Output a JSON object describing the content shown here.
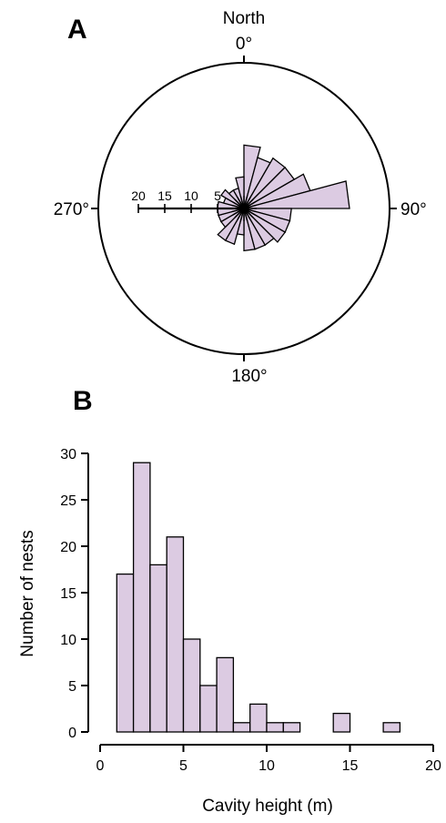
{
  "panels": {
    "a_label": "A",
    "b_label": "B"
  },
  "colors": {
    "fill": "#dccbe2",
    "stroke": "#000000"
  },
  "chart_data": [
    {
      "type": "rose",
      "direction_labels": {
        "north": "North",
        "n": "0°",
        "e": "90°",
        "s": "180°",
        "w": "270°"
      },
      "radial_ticks": [
        20,
        15,
        10,
        5
      ],
      "radial_max": 25,
      "bin_width_deg": 15,
      "bins": [
        {
          "start": 0,
          "value": 12
        },
        {
          "start": 15,
          "value": 10
        },
        {
          "start": 30,
          "value": 11
        },
        {
          "start": 45,
          "value": 11
        },
        {
          "start": 60,
          "value": 13
        },
        {
          "start": 75,
          "value": 20
        },
        {
          "start": 90,
          "value": 9
        },
        {
          "start": 105,
          "value": 9
        },
        {
          "start": 120,
          "value": 9
        },
        {
          "start": 135,
          "value": 8
        },
        {
          "start": 150,
          "value": 8
        },
        {
          "start": 165,
          "value": 8
        },
        {
          "start": 180,
          "value": 5
        },
        {
          "start": 195,
          "value": 7
        },
        {
          "start": 210,
          "value": 7
        },
        {
          "start": 225,
          "value": 5
        },
        {
          "start": 240,
          "value": 5
        },
        {
          "start": 255,
          "value": 5
        },
        {
          "start": 270,
          "value": 5
        },
        {
          "start": 285,
          "value": 4
        },
        {
          "start": 300,
          "value": 5
        },
        {
          "start": 315,
          "value": 4
        },
        {
          "start": 330,
          "value": 4
        },
        {
          "start": 345,
          "value": 6
        }
      ]
    },
    {
      "type": "bar",
      "xlabel": "Cavity height (m)",
      "ylabel": "Number of nests",
      "xlim": [
        0,
        20
      ],
      "ylim": [
        0,
        30
      ],
      "xticks": [
        0,
        5,
        10,
        15,
        20
      ],
      "yticks": [
        0,
        5,
        10,
        15,
        20,
        25,
        30
      ],
      "bin_width": 1,
      "bins": [
        {
          "x0": 1,
          "count": 17
        },
        {
          "x0": 2,
          "count": 29
        },
        {
          "x0": 3,
          "count": 18
        },
        {
          "x0": 4,
          "count": 21
        },
        {
          "x0": 5,
          "count": 10
        },
        {
          "x0": 6,
          "count": 5
        },
        {
          "x0": 7,
          "count": 8
        },
        {
          "x0": 8,
          "count": 1
        },
        {
          "x0": 9,
          "count": 3
        },
        {
          "x0": 10,
          "count": 1
        },
        {
          "x0": 11,
          "count": 1
        },
        {
          "x0": 12,
          "count": 0
        },
        {
          "x0": 13,
          "count": 0
        },
        {
          "x0": 14,
          "count": 2
        },
        {
          "x0": 15,
          "count": 0
        },
        {
          "x0": 16,
          "count": 0
        },
        {
          "x0": 17,
          "count": 1
        }
      ]
    }
  ]
}
